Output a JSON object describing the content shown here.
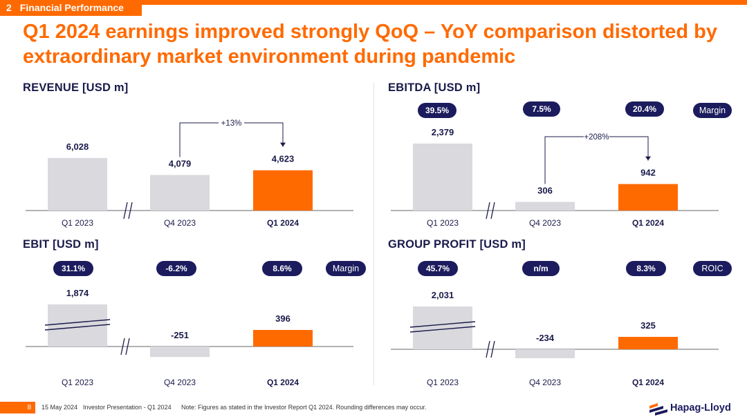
{
  "section": {
    "number": "2",
    "label": "Financial Performance"
  },
  "headline": "Q1 2024 earnings improved strongly QoQ – YoY comparison distorted by extraordinary market environment during pandemic",
  "colors": {
    "accent": "#ff6a00",
    "navy": "#1b1b5e",
    "grey_bar": "#d9d9de"
  },
  "chart_data": [
    {
      "type": "bar",
      "title": "REVENUE [USD m]",
      "categories": [
        "Q1 2023",
        "Q4 2023",
        "Q1 2024"
      ],
      "values": [
        6028,
        4079,
        4623
      ],
      "value_labels": [
        "6,028",
        "4,079",
        "4,623"
      ],
      "highlight": "Q1 2024",
      "annotation": "+13%",
      "pills": [],
      "metric": ""
    },
    {
      "type": "bar",
      "title": "EBITDA [USD m]",
      "categories": [
        "Q1 2023",
        "Q4 2023",
        "Q1 2024"
      ],
      "values": [
        2379,
        306,
        942
      ],
      "value_labels": [
        "2,379",
        "306",
        "942"
      ],
      "highlight": "Q1 2024",
      "annotation": "+208%",
      "pills": [
        "39.5%",
        "7.5%",
        "20.4%"
      ],
      "metric": "Margin"
    },
    {
      "type": "bar",
      "title": "EBIT [USD m]",
      "categories": [
        "Q1 2023",
        "Q4 2023",
        "Q1 2024"
      ],
      "values": [
        1874,
        -251,
        396
      ],
      "value_labels": [
        "1,874",
        "-251",
        "396"
      ],
      "highlight": "Q1 2024",
      "annotation": "",
      "pills": [
        "31.1%",
        "-6.2%",
        "8.6%"
      ],
      "metric": "Margin"
    },
    {
      "type": "bar",
      "title": "GROUP PROFIT [USD m]",
      "categories": [
        "Q1 2023",
        "Q4 2023",
        "Q1 2024"
      ],
      "values": [
        2031,
        -234,
        325
      ],
      "value_labels": [
        "2,031",
        "-234",
        "325"
      ],
      "highlight": "Q1 2024",
      "annotation": "",
      "pills": [
        "45.7%",
        "n/m",
        "8.3%"
      ],
      "metric": "ROIC"
    }
  ],
  "footer": {
    "page": "8",
    "date": "15 May 2024",
    "presentation": "Investor Presentation - Q1 2024",
    "note": "Note: Figures as stated in the Investor Report Q1 2024. Rounding differences may occur."
  },
  "logo": {
    "name": "Hapag-Lloyd"
  }
}
